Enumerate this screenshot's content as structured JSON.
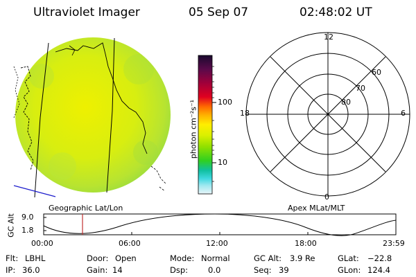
{
  "header": {
    "instrument": "Ultraviolet Imager",
    "date": "05 Sep 07",
    "time": "02:48:02 UT"
  },
  "image_panel": {
    "caption": "Geographic Lat/Lon"
  },
  "colorbar": {
    "unit_label": "photon cm⁻²s⁻¹",
    "ticks": [
      "100",
      "10"
    ],
    "colors": [
      "#1a0a2e",
      "#5a0a4a",
      "#a0003a",
      "#e00020",
      "#ff6a00",
      "#ffb000",
      "#ffee00",
      "#d8f000",
      "#90e000",
      "#30d020",
      "#10c0a0",
      "#40d8e0",
      "#a0e8f0",
      "#e8f4f8"
    ]
  },
  "polar_panel": {
    "caption": "Apex MLat/MLT",
    "mlt_labels": [
      "12",
      "18",
      "6",
      "0"
    ],
    "lat_labels": [
      "60",
      "70",
      "80"
    ]
  },
  "altitude_plot": {
    "ylabel": "GC Alt",
    "yticks": [
      "9.0",
      "1.8"
    ],
    "xticks": [
      "00:00",
      "06:00",
      "12:00",
      "18:00",
      "23:59"
    ],
    "marker_time": "02:48",
    "marker_color": "#c03030"
  },
  "info_rows": [
    [
      {
        "label": "Flt:",
        "value": "LBHL"
      },
      {
        "label": "Door:",
        "value": "Open"
      },
      {
        "label": "Mode:",
        "value": "Normal"
      },
      {
        "label": "GC Alt:",
        "value": "3.9 Re"
      },
      {
        "label": "GLat:",
        "value": "−22.8"
      }
    ],
    [
      {
        "label": "IP:",
        "value": "36.0"
      },
      {
        "label": "Gain:",
        "value": "14"
      },
      {
        "label": "Dsp:",
        "value": "0.0"
      },
      {
        "label": "Seq:",
        "value": "39"
      },
      {
        "label": "GLon:",
        "value": "124.4"
      }
    ]
  ]
}
